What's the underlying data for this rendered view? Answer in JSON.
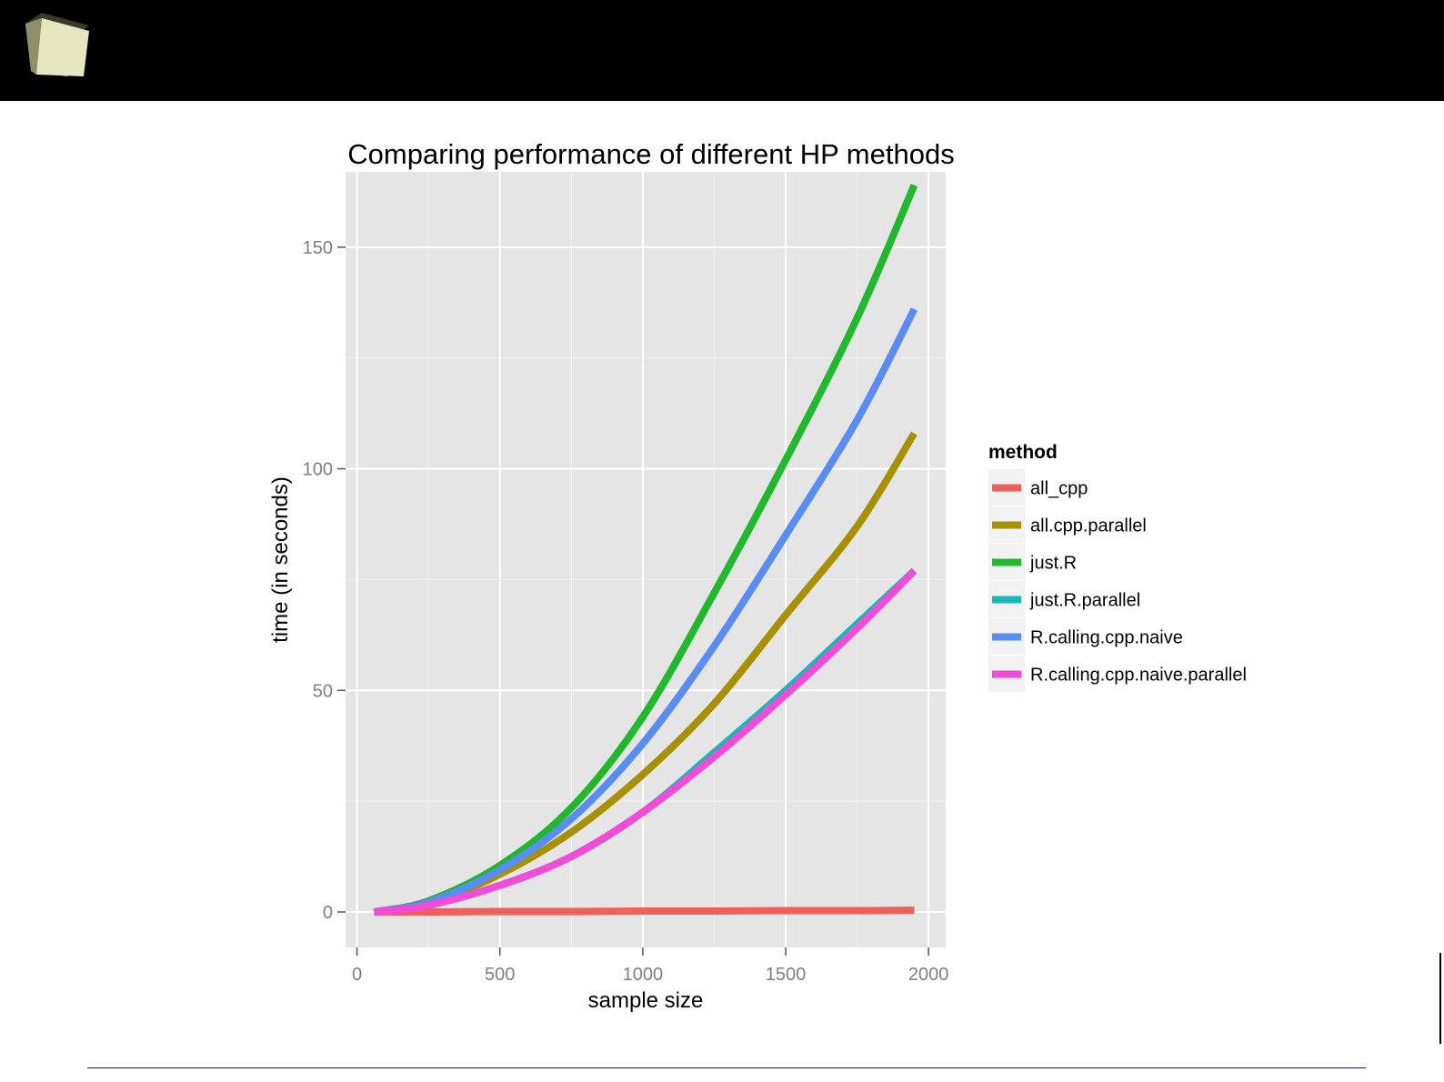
{
  "colors": {
    "header_background": "#000000",
    "panel_background": "#e5e5e5",
    "grid_major": "#ffffff",
    "grid_minor": "#f2f2f2",
    "footer_rule": "#1a1a7a"
  },
  "header": {
    "logo_icon": "cube-icon"
  },
  "chart_data": {
    "type": "line",
    "title": "Comparing performance of different HP methods",
    "xlabel": "sample size",
    "ylabel": "time (in seconds)",
    "xlim": [
      -40,
      2060
    ],
    "ylim": [
      -8,
      167
    ],
    "x_ticks": [
      0,
      500,
      1000,
      1500,
      2000
    ],
    "y_ticks": [
      0,
      50,
      100,
      150
    ],
    "grid": true,
    "legend": {
      "title": "method",
      "placement": "right"
    },
    "x": [
      60,
      250,
      500,
      750,
      1000,
      1250,
      1500,
      1750,
      1950
    ],
    "series": [
      {
        "name": "all_cpp",
        "color": "#f0605a",
        "values": [
          0,
          0,
          0.1,
          0.1,
          0.2,
          0.2,
          0.3,
          0.3,
          0.4
        ]
      },
      {
        "name": "all.cpp.parallel",
        "color": "#a89000",
        "values": [
          0,
          2,
          8.5,
          18,
          31,
          47,
          67,
          87,
          108
        ]
      },
      {
        "name": "just.R",
        "color": "#22b82e",
        "values": [
          0,
          2.5,
          10.5,
          23.5,
          44,
          72,
          102,
          134,
          164
        ]
      },
      {
        "name": "just.R.parallel",
        "color": "#19b8b8",
        "values": [
          0,
          1.5,
          6,
          12.5,
          22.5,
          36,
          50,
          65,
          77
        ]
      },
      {
        "name": "R.calling.cpp.naive",
        "color": "#5a8cf5",
        "values": [
          0,
          2.2,
          9.5,
          21,
          38,
          60,
          85,
          111,
          136
        ]
      },
      {
        "name": "R.calling.cpp.naive.parallel",
        "color": "#f04cd8",
        "values": [
          0,
          1.5,
          6,
          12.5,
          22.5,
          35,
          49,
          64,
          77
        ]
      }
    ]
  }
}
